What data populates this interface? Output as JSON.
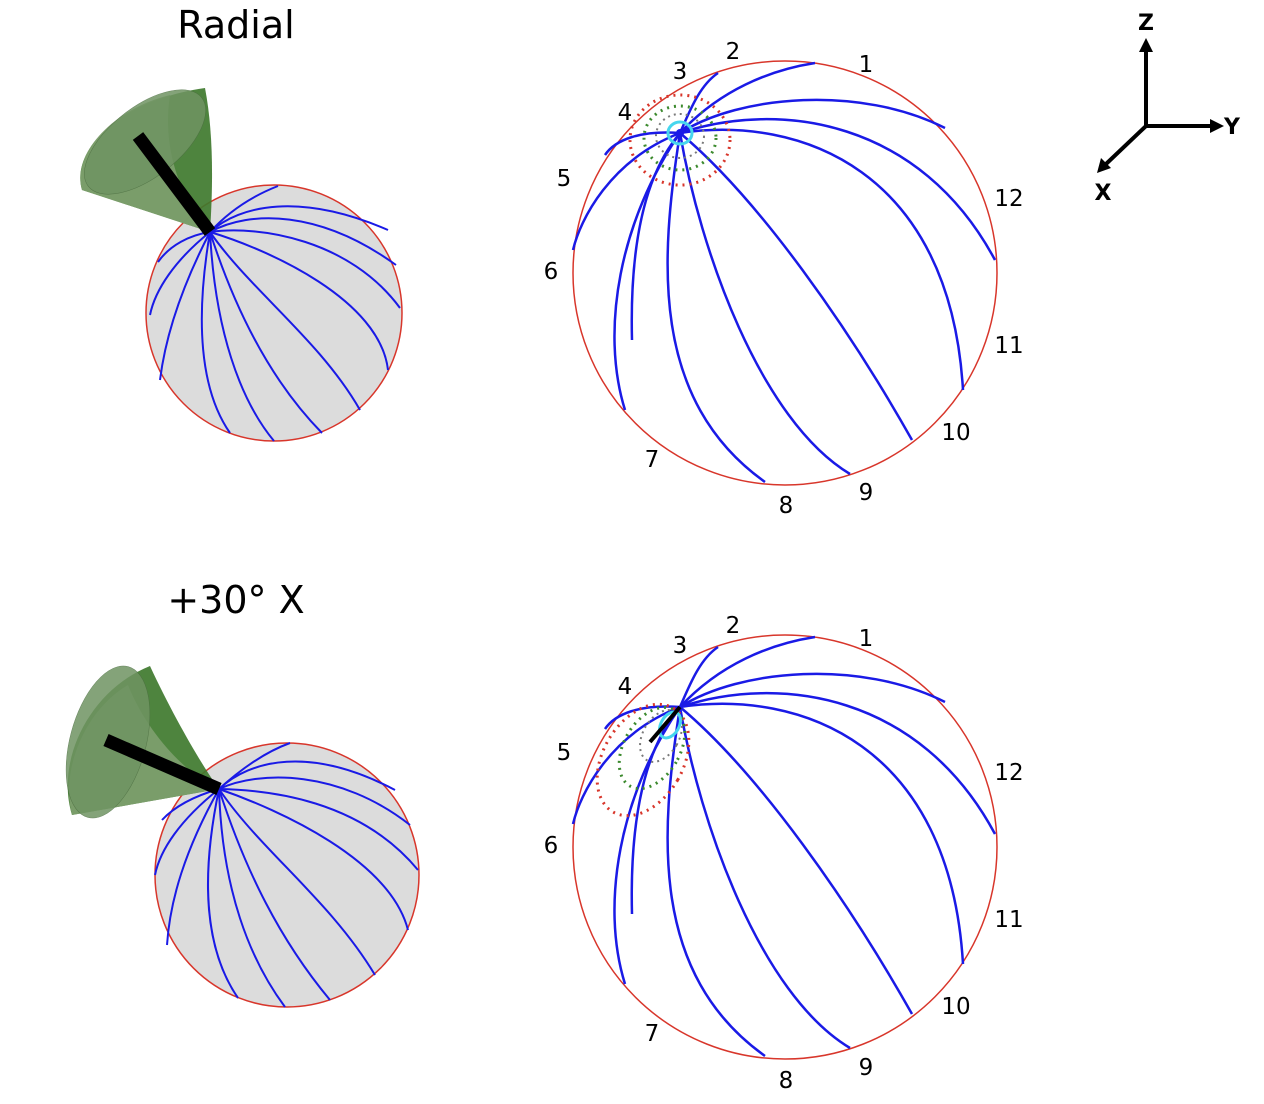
{
  "titles": {
    "top": "Radial",
    "bottom": "+30° X"
  },
  "hour_labels": [
    "1",
    "2",
    "3",
    "4",
    "5",
    "6",
    "7",
    "8",
    "9",
    "10",
    "11",
    "12"
  ],
  "axes": {
    "z": "Z",
    "y": "Y",
    "x": "X"
  },
  "colors": {
    "meridian": "#1a1ae6",
    "outline": "#d8362b",
    "sphere_fill": "#dcdcdc",
    "cone_light": "#7fa06f",
    "cone_dark": "#3f7a2e",
    "rod": "#000000",
    "dots_red": "#d8362b",
    "dots_green": "#3c8a2e",
    "dots_gray": "#7a7a7a",
    "dots_cyan": "#46d6ee"
  }
}
